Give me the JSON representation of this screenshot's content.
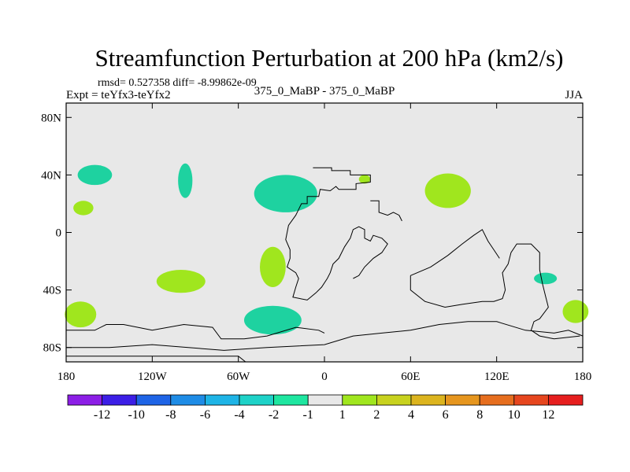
{
  "chart_data": {
    "type": "heatmap",
    "title": "Streamfunction Perturbation at 200 hPa (km2/s)",
    "stats_line": "rmsd= 0.527358 diff= -8.99862e-09",
    "experiment": "Expt = teYfx3-teYfx2",
    "center_label": "375_0_MaBP - 375_0_MaBP",
    "season": "JJA",
    "x_range": [
      -180,
      180
    ],
    "y_range": [
      -90,
      90
    ],
    "x_ticks": [
      {
        "value": -180,
        "label": "180"
      },
      {
        "value": -120,
        "label": "120W"
      },
      {
        "value": -60,
        "label": "60W"
      },
      {
        "value": 0,
        "label": "0"
      },
      {
        "value": 60,
        "label": "60E"
      },
      {
        "value": 120,
        "label": "120E"
      },
      {
        "value": 180,
        "label": "180"
      }
    ],
    "y_ticks": [
      {
        "value": 80,
        "label": "80N"
      },
      {
        "value": 40,
        "label": "40N"
      },
      {
        "value": 0,
        "label": "0"
      },
      {
        "value": -40,
        "label": "40S"
      },
      {
        "value": -80,
        "label": "80S"
      }
    ],
    "colorbar": {
      "colors": [
        "#8c1ee6",
        "#3c1ee6",
        "#1e64e6",
        "#1e8ce6",
        "#1eb4e6",
        "#1ed2c8",
        "#1ee6a0",
        "#e8e8e8",
        "#a0e61e",
        "#c8d21e",
        "#dcb41e",
        "#e6961e",
        "#e66e1e",
        "#e6461e",
        "#e61e1e"
      ],
      "labels": [
        "-12",
        "-10",
        "-8",
        "-6",
        "-4",
        "-2",
        "-1",
        "1",
        "2",
        "4",
        "6",
        "8",
        "10",
        "12"
      ]
    },
    "background_color": "#e8e8e8",
    "anomalies": [
      {
        "name": "neg-anomaly-nw-pacific-40n",
        "sign": "negative",
        "center": [
          -160,
          40
        ],
        "radius": [
          12,
          7
        ],
        "color": "#1ed2a0"
      },
      {
        "name": "neg-anomaly-north-america-40n",
        "sign": "negative",
        "center": [
          -97,
          36
        ],
        "radius": [
          5,
          12
        ],
        "color": "#1ed2a0"
      },
      {
        "name": "pos-anomaly-east-pacific-18n",
        "sign": "positive",
        "center": [
          -168,
          17
        ],
        "radius": [
          7,
          5
        ],
        "color": "#a0e61e"
      },
      {
        "name": "neg-anomaly-north-atlantic-30n",
        "sign": "negative",
        "center": [
          -27,
          27
        ],
        "radius": [
          22,
          13
        ],
        "color": "#1ed2a0"
      },
      {
        "name": "pos-anomaly-mediterranean-38n",
        "sign": "positive",
        "center": [
          28,
          37
        ],
        "radius": [
          4,
          3
        ],
        "color": "#a0e61e"
      },
      {
        "name": "pos-anomaly-asia-30n",
        "sign": "positive",
        "center": [
          86,
          29
        ],
        "radius": [
          16,
          12
        ],
        "color": "#a0e61e"
      },
      {
        "name": "pos-anomaly-south-atlantic-20s",
        "sign": "positive",
        "center": [
          -36,
          -24
        ],
        "radius": [
          9,
          14
        ],
        "color": "#a0e61e"
      },
      {
        "name": "pos-anomaly-south-pacific-35s",
        "sign": "positive",
        "center": [
          -100,
          -34
        ],
        "radius": [
          17,
          8
        ],
        "color": "#a0e61e"
      },
      {
        "name": "pos-anomaly-south-pacific-55s",
        "sign": "positive",
        "center": [
          -170,
          -57
        ],
        "radius": [
          11,
          9
        ],
        "color": "#a0e61e"
      },
      {
        "name": "neg-anomaly-southern-ocean-60s",
        "sign": "negative",
        "center": [
          -36,
          -61
        ],
        "radius": [
          20,
          10
        ],
        "color": "#1ed2a0"
      },
      {
        "name": "neg-anomaly-tasman-32s",
        "sign": "negative",
        "center": [
          154,
          -32
        ],
        "radius": [
          8,
          4
        ],
        "color": "#1ed2a0"
      },
      {
        "name": "pos-anomaly-far-east-55s",
        "sign": "positive",
        "center": [
          175,
          -55
        ],
        "radius": [
          9,
          8
        ],
        "color": "#a0e61e"
      }
    ],
    "coastlines": [
      {
        "name": "coastline-northern-continent",
        "points": [
          [
            -8,
            45
          ],
          [
            5,
            45
          ],
          [
            5,
            43
          ],
          [
            18,
            43
          ],
          [
            18,
            40
          ],
          [
            32,
            40
          ],
          [
            32,
            35
          ],
          [
            22,
            34
          ],
          [
            22,
            30
          ],
          [
            10,
            30
          ],
          [
            8,
            32
          ],
          [
            4,
            29
          ],
          [
            -3,
            30
          ],
          [
            -4,
            25
          ],
          [
            -12,
            25
          ],
          [
            -12,
            20
          ],
          [
            -16,
            20
          ],
          [
            -18,
            16
          ],
          [
            -20,
            12
          ],
          [
            -25,
            5
          ],
          [
            -27,
            -5
          ],
          [
            -24,
            -12
          ],
          [
            -24,
            -18
          ],
          [
            -26,
            -24
          ],
          [
            -20,
            -28
          ],
          [
            -18,
            -32
          ],
          [
            -20,
            -38
          ],
          [
            -22,
            -45
          ],
          [
            -12,
            -47
          ],
          [
            -6,
            -42
          ],
          [
            -2,
            -38
          ],
          [
            2,
            -32
          ],
          [
            4,
            -28
          ],
          [
            6,
            -22
          ],
          [
            10,
            -18
          ],
          [
            14,
            -10
          ],
          [
            18,
            -4
          ],
          [
            20,
            2
          ],
          [
            24,
            4
          ],
          [
            28,
            2
          ],
          [
            28,
            -4
          ],
          [
            32,
            -6
          ],
          [
            34,
            -2
          ],
          [
            40,
            -4
          ],
          [
            44,
            -8
          ],
          [
            40,
            -14
          ],
          [
            34,
            -18
          ],
          [
            28,
            -24
          ],
          [
            24,
            -30
          ],
          [
            20,
            -32
          ]
        ]
      },
      {
        "name": "coastline-arabian-inlet",
        "points": [
          [
            32,
            22
          ],
          [
            38,
            22
          ],
          [
            38,
            14
          ],
          [
            44,
            12
          ],
          [
            48,
            14
          ],
          [
            52,
            12
          ],
          [
            54,
            8
          ]
        ]
      },
      {
        "name": "coastline-southern-margin",
        "points": [
          [
            -180,
            -68
          ],
          [
            -160,
            -68
          ],
          [
            -152,
            -64
          ],
          [
            -140,
            -64
          ],
          [
            -120,
            -68
          ],
          [
            -98,
            -64
          ],
          [
            -78,
            -66
          ],
          [
            -72,
            -74
          ],
          [
            -56,
            -74
          ],
          [
            -40,
            -72
          ],
          [
            -20,
            -66
          ],
          [
            -4,
            -68
          ],
          [
            0,
            -70
          ]
        ]
      },
      {
        "name": "coastline-southern-continent",
        "points": [
          [
            -180,
            -80
          ],
          [
            -150,
            -80
          ],
          [
            -120,
            -78
          ],
          [
            -70,
            -82
          ],
          [
            -40,
            -80
          ],
          [
            0,
            -78
          ],
          [
            20,
            -72
          ],
          [
            40,
            -70
          ],
          [
            60,
            -68
          ],
          [
            80,
            -64
          ],
          [
            100,
            -62
          ],
          [
            120,
            -62
          ],
          [
            140,
            -68
          ],
          [
            160,
            -70
          ],
          [
            170,
            -68
          ],
          [
            180,
            -72
          ]
        ]
      },
      {
        "name": "coastline-lower-margin",
        "points": [
          [
            -180,
            -86
          ],
          [
            -60,
            -86
          ],
          [
            -55,
            -90
          ]
        ]
      },
      {
        "name": "coastline-ridge-se",
        "points": [
          [
            60,
            -30
          ],
          [
            74,
            -24
          ],
          [
            86,
            -16
          ],
          [
            96,
            -8
          ],
          [
            104,
            -2
          ],
          [
            110,
            2
          ],
          [
            114,
            -6
          ],
          [
            118,
            -12
          ],
          [
            122,
            -18
          ]
        ]
      },
      {
        "name": "coastline-ridge-east",
        "points": [
          [
            60,
            -30
          ],
          [
            60,
            -40
          ],
          [
            70,
            -48
          ],
          [
            84,
            -52
          ],
          [
            96,
            -50
          ],
          [
            110,
            -48
          ],
          [
            118,
            -48
          ],
          [
            124,
            -46
          ],
          [
            126,
            -40
          ],
          [
            124,
            -28
          ],
          [
            128,
            -22
          ],
          [
            130,
            -14
          ],
          [
            134,
            -8
          ],
          [
            144,
            -8
          ],
          [
            150,
            -14
          ],
          [
            150,
            -26
          ],
          [
            152,
            -36
          ],
          [
            154,
            -44
          ],
          [
            156,
            -52
          ],
          [
            150,
            -60
          ],
          [
            146,
            -62
          ],
          [
            144,
            -68
          ],
          [
            150,
            -72
          ],
          [
            160,
            -74
          ],
          [
            178,
            -72
          ]
        ]
      }
    ]
  }
}
